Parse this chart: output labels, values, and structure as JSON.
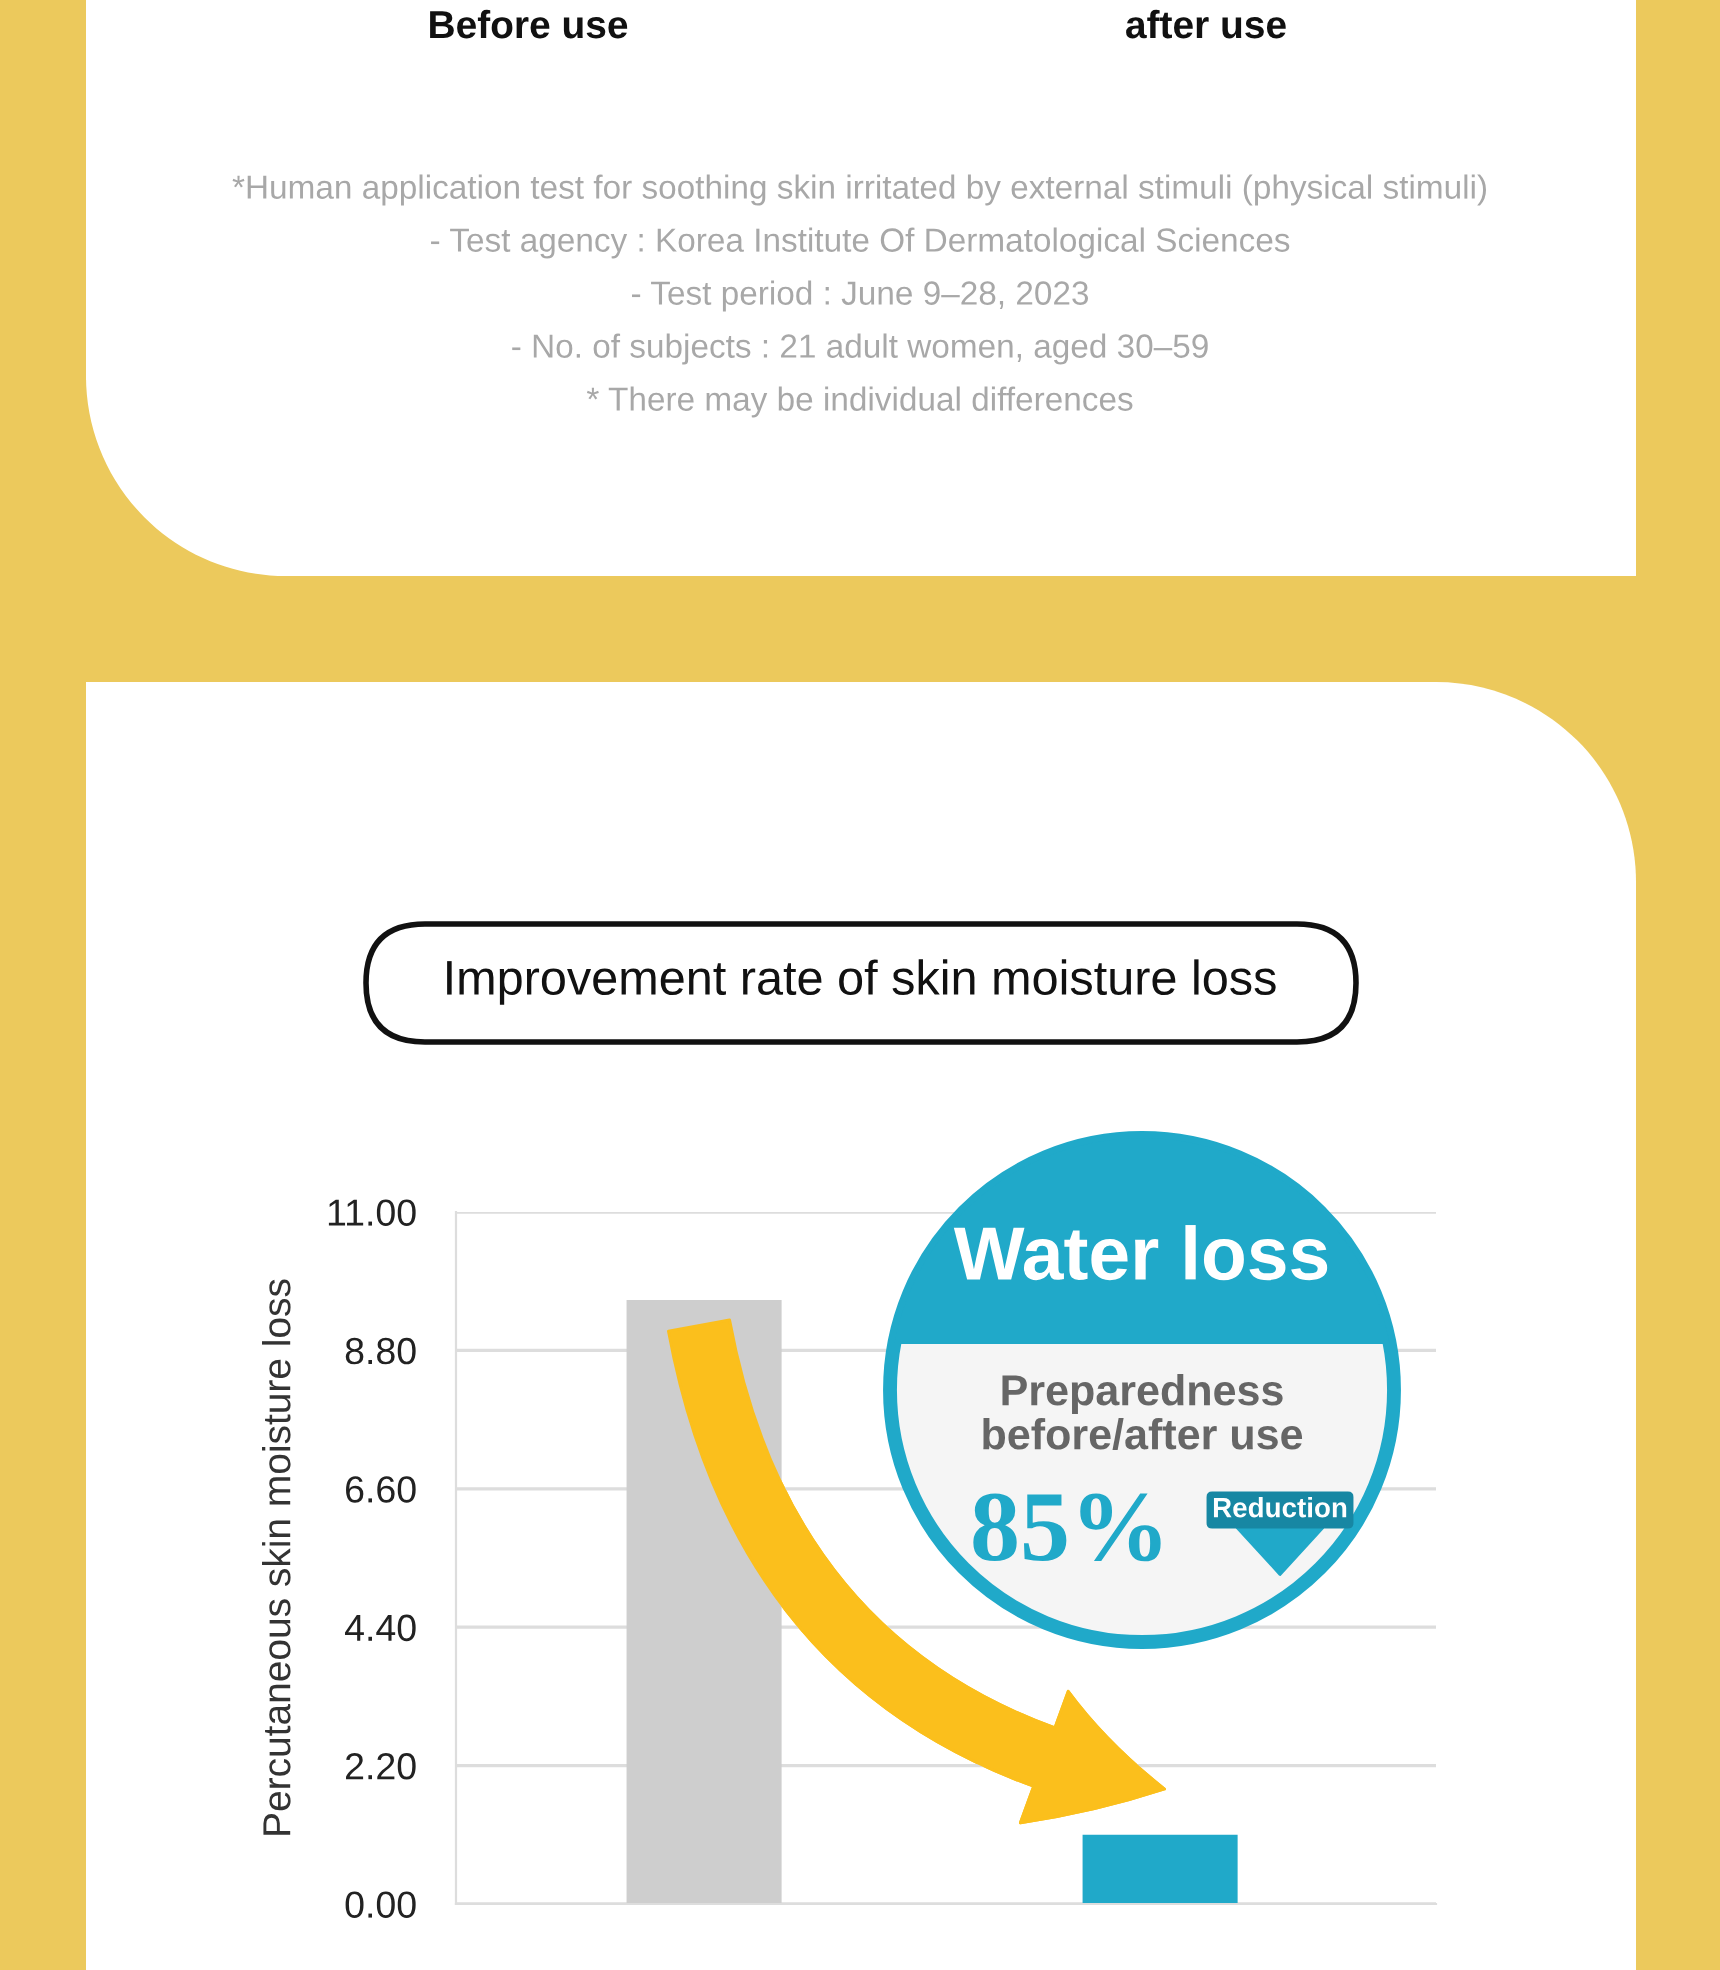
{
  "chart_data": {
    "type": "bar",
    "title": "Improvement rate of skin moisture loss",
    "ylabel": "Percutaneous skin moisture loss",
    "categories": [
      null,
      null
    ],
    "values": [
      9.6,
      1.1
    ],
    "colors": [
      "#cecece",
      "#20a9c9"
    ],
    "ylim": [
      0,
      11
    ],
    "yticks": [
      {
        "value": 0,
        "label": "0.00"
      },
      {
        "value": 2.2,
        "label": "2.20"
      },
      {
        "value": 4.4,
        "label": "4.40"
      },
      {
        "value": 6.6,
        "label": "6.60"
      },
      {
        "value": 8.8,
        "label": "8.80"
      },
      {
        "value": 11,
        "label": "11.00"
      }
    ],
    "grid": "y",
    "annotations": [
      "Before use",
      "after use",
      "*Human application test for soothing skin irritated by external stimuli (physical stimuli)",
      "- Test agency : Korea Institute Of Dermatological Sciences",
      "- Test period : June 9–28, 2023",
      "- No. of subjects : 21 adult women, aged 30–59",
      "* There may be individual differences",
      "Water loss",
      "Preparedness",
      "before/after use",
      "85%",
      "Reduction"
    ]
  }
}
